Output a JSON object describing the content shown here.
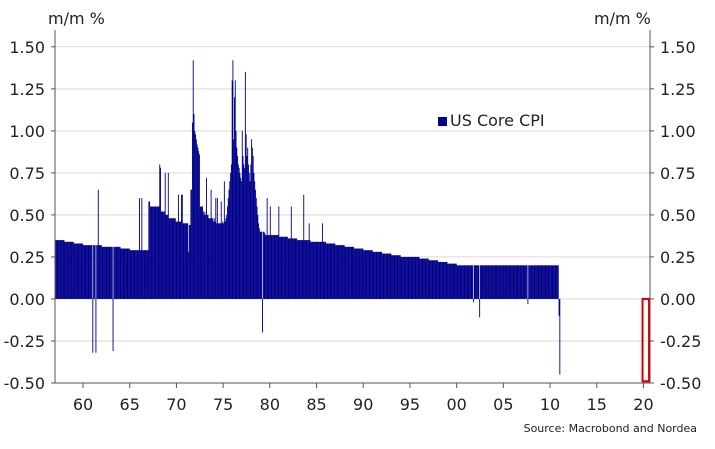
{
  "chart_data": {
    "type": "bar",
    "ylabel_left": "m/m %",
    "ylabel_right": "m/m %",
    "ylim": [
      -0.5,
      1.6
    ],
    "yticks": [
      "1.50",
      "1.25",
      "1.00",
      "0.75",
      "0.50",
      "0.25",
      "0.00",
      "-0.25",
      "-0.50"
    ],
    "yticks_values": [
      1.5,
      1.25,
      1.0,
      0.75,
      0.5,
      0.25,
      0.0,
      -0.25,
      -0.5
    ],
    "xticks": [
      "60",
      "65",
      "70",
      "75",
      "80",
      "85",
      "90",
      "95",
      "00",
      "05",
      "10",
      "15",
      "20"
    ],
    "xticks_years": [
      1960,
      1965,
      1970,
      1975,
      1980,
      1985,
      1990,
      1995,
      2000,
      2005,
      2010,
      2015,
      2020
    ],
    "xlim_years": [
      1957.0,
      2020.7
    ],
    "grid": true,
    "legend_position": "center-right",
    "series": [
      {
        "name": "US Core CPI",
        "color": "#00008b",
        "x_start_year": 1957.0,
        "step_years": 0.08333,
        "values": [
          0.35,
          0.35,
          0.35,
          0.35,
          0.35,
          0.35,
          0.35,
          0.35,
          0.35,
          0.35,
          0.35,
          0.35,
          0.34,
          0.34,
          0.34,
          0.34,
          0.34,
          0.34,
          0.34,
          0.34,
          0.34,
          0.34,
          0.34,
          0.34,
          0.33,
          0.33,
          0.33,
          0.33,
          0.33,
          0.33,
          0.33,
          0.33,
          0.33,
          0.33,
          0.33,
          0.33,
          0.32,
          0.32,
          0.32,
          0.32,
          0.32,
          0.32,
          0.32,
          0.32,
          0.32,
          0.32,
          0.32,
          0.32,
          -0.32,
          0.32,
          0.32,
          0.32,
          -0.32,
          0.32,
          0.32,
          0.65,
          0.32,
          0.32,
          0.32,
          0.32,
          0.31,
          0.31,
          0.31,
          0.31,
          0.31,
          0.31,
          0.31,
          0.31,
          0.31,
          0.31,
          0.31,
          0.31,
          0.31,
          0.31,
          -0.31,
          0.31,
          0.31,
          0.31,
          0.31,
          0.31,
          0.31,
          0.31,
          0.31,
          0.31,
          0.3,
          0.3,
          0.3,
          0.3,
          0.3,
          0.3,
          0.3,
          0.3,
          0.3,
          0.3,
          0.3,
          0.3,
          0.29,
          0.29,
          0.29,
          0.29,
          0.29,
          0.29,
          0.29,
          0.29,
          0.29,
          0.29,
          0.29,
          0.29,
          0.6,
          0.29,
          0.29,
          0.6,
          0.29,
          0.29,
          0.29,
          0.29,
          0.29,
          0.29,
          0.29,
          0.29,
          0.58,
          0.58,
          0.55,
          0.55,
          0.55,
          0.55,
          0.55,
          0.55,
          0.55,
          0.55,
          0.55,
          0.55,
          0.55,
          0.55,
          0.8,
          0.78,
          0.52,
          0.52,
          0.52,
          0.52,
          0.52,
          0.75,
          0.5,
          0.5,
          0.5,
          0.75,
          0.48,
          0.48,
          0.48,
          0.48,
          0.48,
          0.48,
          0.48,
          0.48,
          0.48,
          0.46,
          0.46,
          0.46,
          0.62,
          0.46,
          0.46,
          0.46,
          0.62,
          0.62,
          0.45,
          0.45,
          0.45,
          0.45,
          0.45,
          0.45,
          0.45,
          0.28,
          0.44,
          0.44,
          0.65,
          0.65,
          1.05,
          1.42,
          1.1,
          1.0,
          0.98,
          0.95,
          0.92,
          0.9,
          0.88,
          0.86,
          0.55,
          0.55,
          0.55,
          0.55,
          0.52,
          0.5,
          0.52,
          0.5,
          0.72,
          0.5,
          0.5,
          0.48,
          0.48,
          0.48,
          0.65,
          0.48,
          0.48,
          0.46,
          0.48,
          0.46,
          0.6,
          0.45,
          0.6,
          0.45,
          0.45,
          0.45,
          0.45,
          0.58,
          0.45,
          0.46,
          0.45,
          0.7,
          0.46,
          0.48,
          0.5,
          0.55,
          0.6,
          0.65,
          0.7,
          0.75,
          0.8,
          1.3,
          1.42,
          0.95,
          1.2,
          1.3,
          1.0,
          0.9,
          0.85,
          0.8,
          0.78,
          0.75,
          0.72,
          0.7,
          1.0,
          0.85,
          0.8,
          0.78,
          1.35,
          0.98,
          0.85,
          0.9,
          0.8,
          0.75,
          0.7,
          0.8,
          0.95,
          0.9,
          0.85,
          0.75,
          0.7,
          0.65,
          0.6,
          0.55,
          0.5,
          0.45,
          0.42,
          0.4,
          0.4,
          0.4,
          -0.2,
          0.4,
          0.4,
          0.39,
          0.38,
          0.38,
          0.6,
          0.38,
          0.38,
          0.38,
          0.55,
          0.38,
          0.38,
          0.38,
          0.38,
          0.38,
          0.38,
          0.38,
          0.38,
          0.38,
          0.38,
          0.55,
          0.37,
          0.37,
          0.37,
          0.37,
          0.37,
          0.37,
          0.37,
          0.37,
          0.37,
          0.37,
          0.37,
          0.36,
          0.36,
          0.36,
          0.36,
          0.55,
          0.36,
          0.36,
          0.36,
          0.36,
          0.36,
          0.36,
          0.36,
          0.35,
          0.35,
          0.35,
          0.35,
          0.35,
          0.35,
          0.35,
          0.35,
          0.62,
          0.35,
          0.35,
          0.35,
          0.35,
          0.35,
          0.35,
          0.45,
          0.35,
          0.34,
          0.34,
          0.34,
          0.34,
          0.34,
          0.34,
          0.34,
          0.34,
          0.34,
          0.34,
          0.34,
          0.34,
          0.34,
          0.34,
          0.34,
          0.45,
          0.34,
          0.34,
          0.34,
          0.34,
          0.33,
          0.33,
          0.33,
          0.33,
          0.33,
          0.33,
          0.33,
          0.33,
          0.33,
          0.33,
          0.33,
          0.33,
          0.32,
          0.32,
          0.32,
          0.32,
          0.32,
          0.32,
          0.32,
          0.32,
          0.32,
          0.32,
          0.32,
          0.32,
          0.31,
          0.31,
          0.31,
          0.31,
          0.31,
          0.31,
          0.31,
          0.31,
          0.31,
          0.31,
          0.31,
          0.31,
          0.3,
          0.3,
          0.3,
          0.3,
          0.3,
          0.3,
          0.3,
          0.3,
          0.3,
          0.3,
          0.3,
          0.3,
          0.29,
          0.29,
          0.29,
          0.29,
          0.29,
          0.29,
          0.29,
          0.29,
          0.29,
          0.29,
          0.29,
          0.29,
          0.28,
          0.28,
          0.28,
          0.28,
          0.28,
          0.28,
          0.28,
          0.28,
          0.28,
          0.28,
          0.28,
          0.28,
          0.27,
          0.27,
          0.27,
          0.27,
          0.27,
          0.27,
          0.27,
          0.27,
          0.27,
          0.27,
          0.27,
          0.27,
          0.26,
          0.26,
          0.26,
          0.26,
          0.26,
          0.26,
          0.26,
          0.26,
          0.26,
          0.26,
          0.26,
          0.26,
          0.25,
          0.25,
          0.25,
          0.25,
          0.25,
          0.25,
          0.25,
          0.25,
          0.25,
          0.25,
          0.25,
          0.25,
          0.25,
          0.25,
          0.25,
          0.25,
          0.25,
          0.25,
          0.25,
          0.25,
          0.25,
          0.25,
          0.25,
          0.25,
          0.24,
          0.24,
          0.24,
          0.24,
          0.24,
          0.24,
          0.24,
          0.24,
          0.24,
          0.24,
          0.24,
          0.24,
          0.23,
          0.23,
          0.23,
          0.23,
          0.23,
          0.23,
          0.23,
          0.23,
          0.23,
          0.23,
          0.23,
          0.23,
          0.22,
          0.22,
          0.22,
          0.22,
          0.22,
          0.22,
          0.22,
          0.22,
          0.22,
          0.22,
          0.22,
          0.22,
          0.21,
          0.21,
          0.21,
          0.21,
          0.21,
          0.21,
          0.21,
          0.21,
          0.21,
          0.21,
          0.21,
          0.21,
          0.2,
          0.2,
          0.2,
          0.2,
          0.2,
          0.2,
          0.2,
          0.2,
          0.2,
          0.2,
          0.2,
          0.2,
          0.2,
          0.2,
          0.2,
          0.2,
          0.2,
          0.2,
          0.2,
          0.2,
          0.2,
          -0.02,
          0.2,
          0.2,
          0.2,
          0.2,
          0.2,
          0.2,
          0.2,
          -0.11,
          0.2,
          0.2,
          0.2,
          0.2,
          0.2,
          0.2,
          0.2,
          0.2,
          0.2,
          0.2,
          0.2,
          0.2,
          0.2,
          0.2,
          0.2,
          0.2,
          0.2,
          0.2,
          0.2,
          0.2,
          0.2,
          0.2,
          0.2,
          0.2,
          0.2,
          0.2,
          0.2,
          0.2,
          0.2,
          0.2,
          0.2,
          0.2,
          0.2,
          0.2,
          0.2,
          0.2,
          0.2,
          0.2,
          0.2,
          0.2,
          0.2,
          0.2,
          0.2,
          0.2,
          0.2,
          0.2,
          0.2,
          0.2,
          0.2,
          0.2,
          0.2,
          0.2,
          0.2,
          0.2,
          0.2,
          0.2,
          0.2,
          0.2,
          0.2,
          0.2,
          0.2,
          -0.03,
          0.2,
          0.2,
          0.2,
          0.2,
          0.2,
          0.2,
          0.2,
          0.2,
          0.2,
          0.2,
          0.2,
          0.2,
          0.2,
          0.2,
          0.2,
          0.2,
          0.2,
          0.2,
          0.2,
          0.2,
          0.2,
          0.2,
          0.2,
          0.2,
          0.2,
          0.2,
          0.2,
          0.2,
          0.2,
          0.2,
          0.2,
          0.2,
          0.2,
          0.2,
          0.2,
          0.2,
          0.2,
          0.2,
          0.2,
          -0.1,
          -0.45
        ]
      }
    ],
    "highlight": {
      "x_from_year": 2019.9,
      "x_to_year": 2020.6,
      "y_from": -0.49,
      "y_to": 0.0,
      "color": "#d00000"
    }
  },
  "legend": {
    "label": "US Core CPI",
    "color": "#00008b"
  },
  "source": "Source: Macrobond and Nordea"
}
